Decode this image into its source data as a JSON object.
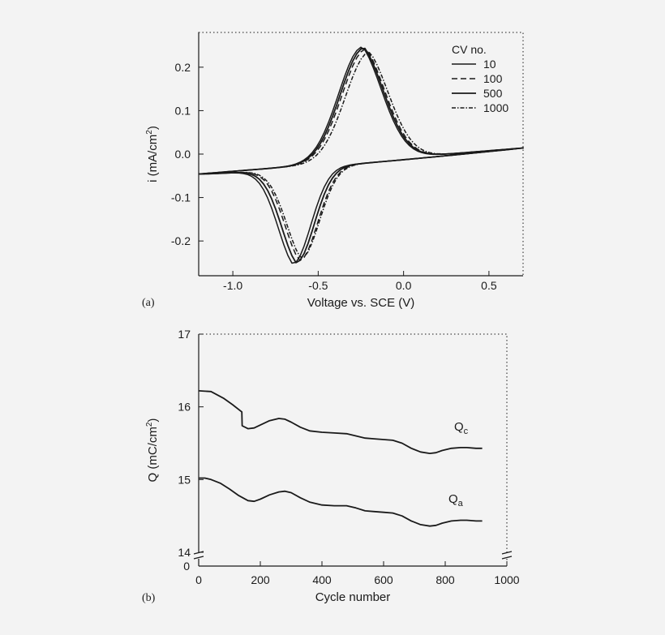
{
  "chart_data": [
    {
      "panel": "(a)",
      "type": "line",
      "title": "",
      "xlabel": "Voltage vs. SCE (V)",
      "ylabel_main": "i (mA/cm",
      "ylabel_sup": "2",
      "ylabel_close": ")",
      "xlim": [
        -1.2,
        0.7
      ],
      "ylim": [
        -0.28,
        0.28
      ],
      "xticks": [
        -1.0,
        -0.5,
        0.0,
        0.5
      ],
      "xtick_labels": [
        "-1.0",
        "-0.5",
        "0.0",
        "0.5"
      ],
      "yticks": [
        -0.2,
        -0.1,
        0.0,
        0.1,
        0.2
      ],
      "ytick_labels": [
        "-0.2",
        "-0.1",
        "0.0",
        "0.1",
        "0.2"
      ],
      "legend_title": "CV no.",
      "legend_position": "top-right",
      "series": [
        {
          "name": "10",
          "style": "solid",
          "peak_anodic": {
            "x": -0.24,
            "y": 0.247
          },
          "peak_cathodic": {
            "x": -0.65,
            "y": -0.253
          }
        },
        {
          "name": "100",
          "style": "dashed",
          "peak_anodic": {
            "x": -0.22,
            "y": 0.242
          },
          "peak_cathodic": {
            "x": -0.61,
            "y": -0.245
          }
        },
        {
          "name": "500",
          "style": "solid",
          "peak_anodic": {
            "x": -0.23,
            "y": 0.245
          },
          "peak_cathodic": {
            "x": -0.63,
            "y": -0.25
          }
        },
        {
          "name": "1000",
          "style": "dashdot",
          "peak_anodic": {
            "x": -0.2,
            "y": 0.235
          },
          "peak_cathodic": {
            "x": -0.6,
            "y": -0.24
          }
        }
      ],
      "curve_endpoints": {
        "x_start": -1.2,
        "y_start": -0.046,
        "x_end": 0.7,
        "y_end": 0.014
      }
    },
    {
      "panel": "(b)",
      "type": "line",
      "title": "",
      "xlabel": "Cycle number",
      "ylabel_main": "Q (mC/cm",
      "ylabel_sup": "2",
      "ylabel_close": ")",
      "xlim": [
        0,
        1000
      ],
      "ylim": [
        14,
        17
      ],
      "axis_break": true,
      "xticks": [
        0,
        200,
        400,
        600,
        800,
        1000
      ],
      "xtick_labels": [
        "0",
        "200",
        "400",
        "600",
        "800",
        "1000"
      ],
      "yticks": [
        14,
        15,
        16,
        17
      ],
      "ytick_labels": [
        "14",
        "15",
        "16",
        "17"
      ],
      "ytick_zero_label": "0",
      "series": [
        {
          "name": "Qc",
          "label_main": "Q",
          "label_sub": "c",
          "x": [
            0,
            40,
            80,
            110,
            140,
            141,
            160,
            180,
            200,
            230,
            260,
            280,
            300,
            330,
            360,
            400,
            440,
            480,
            510,
            540,
            570,
            600,
            630,
            660,
            690,
            720,
            750,
            770,
            790,
            820,
            850,
            870,
            900,
            920
          ],
          "y": [
            16.22,
            16.21,
            16.12,
            16.03,
            15.93,
            15.74,
            15.7,
            15.71,
            15.75,
            15.81,
            15.84,
            15.83,
            15.79,
            15.72,
            15.67,
            15.65,
            15.64,
            15.63,
            15.6,
            15.57,
            15.56,
            15.55,
            15.54,
            15.5,
            15.43,
            15.38,
            15.36,
            15.37,
            15.4,
            15.43,
            15.44,
            15.44,
            15.43,
            15.43
          ]
        },
        {
          "name": "Qa",
          "label_main": "Q",
          "label_sub": "a",
          "x": [
            0,
            20,
            40,
            70,
            100,
            130,
            160,
            180,
            200,
            230,
            260,
            280,
            300,
            330,
            360,
            400,
            440,
            480,
            510,
            540,
            570,
            600,
            630,
            660,
            690,
            720,
            750,
            770,
            790,
            820,
            850,
            870,
            900,
            920
          ],
          "y": [
            15.02,
            15.02,
            15.0,
            14.95,
            14.87,
            14.78,
            14.71,
            14.7,
            14.73,
            14.79,
            14.83,
            14.84,
            14.82,
            14.75,
            14.69,
            14.65,
            14.64,
            14.64,
            14.61,
            14.57,
            14.56,
            14.55,
            14.54,
            14.5,
            14.43,
            14.38,
            14.36,
            14.37,
            14.4,
            14.43,
            14.44,
            14.44,
            14.43,
            14.43
          ]
        }
      ]
    }
  ]
}
